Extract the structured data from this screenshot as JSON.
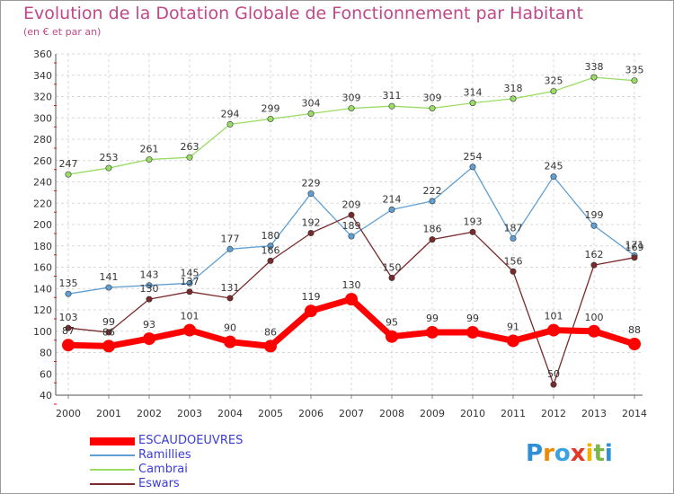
{
  "title": "Evolution de la Dotation Globale de Fonctionnement par Habitant",
  "subtitle": "(en € et par an)",
  "logo_text": "Proxiti",
  "chart_data": {
    "type": "line",
    "x": [
      "2000",
      "2001",
      "2002",
      "2003",
      "2004",
      "2005",
      "2006",
      "2007",
      "2008",
      "2009",
      "2010",
      "2011",
      "2012",
      "2013",
      "2014"
    ],
    "ylim": [
      40,
      360
    ],
    "yticks": [
      40,
      60,
      80,
      100,
      120,
      140,
      160,
      180,
      200,
      220,
      240,
      260,
      280,
      300,
      320,
      340,
      360
    ],
    "grid": true,
    "legend": "bottom-left",
    "series": [
      {
        "name": "ESCAUDOEUVRES",
        "color": "#ff0000",
        "values": [
          87,
          86,
          93,
          101,
          90,
          86,
          119,
          130,
          95,
          99,
          99,
          91,
          101,
          100,
          88
        ]
      },
      {
        "name": "Ramillies",
        "color": "#5f9fd3",
        "values": [
          135,
          141,
          143,
          145,
          177,
          180,
          229,
          189,
          214,
          222,
          254,
          187,
          245,
          199,
          171
        ]
      },
      {
        "name": "Cambrai",
        "color": "#99dd66",
        "values": [
          247,
          253,
          261,
          263,
          294,
          299,
          304,
          309,
          311,
          309,
          314,
          318,
          325,
          338,
          335
        ]
      },
      {
        "name": "Eswars",
        "color": "#7a2a2a",
        "values": [
          103,
          99,
          130,
          137,
          131,
          166,
          192,
          209,
          150,
          186,
          193,
          156,
          50,
          162,
          169
        ]
      }
    ]
  }
}
